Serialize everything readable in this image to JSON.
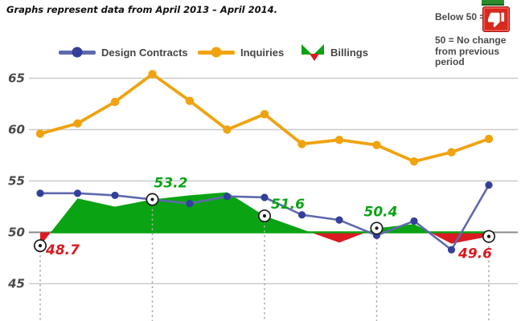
{
  "header": {
    "note": "Graphs represent data from April 2013 – April 2014."
  },
  "legend": {
    "items": [
      {
        "label": "Design Contracts"
      },
      {
        "label": "Inquiries"
      },
      {
        "label": "Billings"
      }
    ]
  },
  "key_panel": {
    "below_label": "Below 50 =",
    "note_lines": [
      "50 = No change",
      "from previous",
      "period"
    ]
  },
  "colors": {
    "design_contracts_line": "#5F69AD",
    "design_contracts_marker": "#333F9B",
    "inquiries": "#F0A30F",
    "billings_up": "#0AA314",
    "billings_down": "#DB1A21",
    "grid": "#CBCBCB",
    "baseline_gray": "#8A8A8A",
    "dashed": "#ABABAB",
    "axis_text": "#4A4A4A",
    "positive_label": "#0AA314",
    "negative_label": "#DB1A21",
    "marker_ring": "#1A1A1A"
  },
  "chart_data": {
    "type": "line",
    "x_range_note": "13 monthly points, April 2013 – April 2014",
    "y_ticks": [
      65,
      60,
      55,
      50,
      45
    ],
    "ylim": [
      44,
      66
    ],
    "baseline": 50,
    "grid": true,
    "legend_position": "top",
    "series": [
      {
        "name": "Design Contracts",
        "type": "line",
        "values": [
          53.8,
          53.8,
          53.6,
          53.2,
          52.8,
          53.5,
          53.4,
          51.7,
          51.2,
          49.7,
          51.1,
          48.3,
          54.6
        ]
      },
      {
        "name": "Inquiries",
        "type": "line",
        "values": [
          59.6,
          60.6,
          62.7,
          65.4,
          62.8,
          60.0,
          61.5,
          58.6,
          59.0,
          58.5,
          56.9,
          57.8,
          59.1
        ]
      },
      {
        "name": "Billings",
        "type": "area",
        "values": [
          48.7,
          53.3,
          52.5,
          53.2,
          53.6,
          53.9,
          51.6,
          50.3,
          49.0,
          50.4,
          50.8,
          48.9,
          49.6
        ]
      }
    ],
    "annotations": [
      {
        "index": 0,
        "label": "48.7",
        "tone": "negative"
      },
      {
        "index": 3,
        "label": "53.2",
        "tone": "positive"
      },
      {
        "index": 6,
        "label": "51.6",
        "tone": "positive"
      },
      {
        "index": 9,
        "label": "50.4",
        "tone": "positive"
      },
      {
        "index": 12,
        "label": "49.6",
        "tone": "negative"
      }
    ]
  }
}
